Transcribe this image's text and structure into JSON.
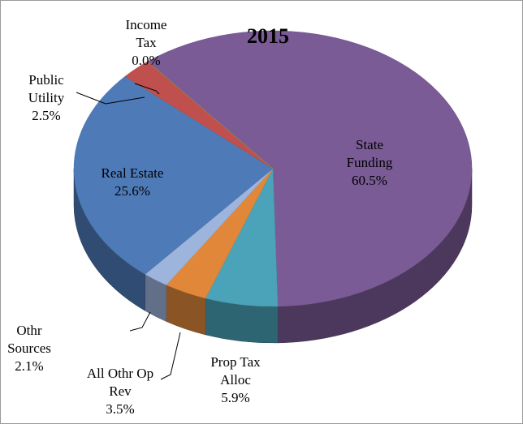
{
  "chart_data": {
    "type": "pie",
    "title": "2015",
    "categories": [
      "State Funding",
      "Prop Tax Alloc",
      "All Othr Op Rev",
      "Othr Sources",
      "Real Estate",
      "Public Utility",
      "Income Tax"
    ],
    "values": [
      60.5,
      5.9,
      3.5,
      2.1,
      25.6,
      2.5,
      0.0
    ],
    "value_labels": [
      "60.5%",
      "5.9%",
      "3.5%",
      "2.1%",
      "25.6%",
      "2.5%",
      "0.0%"
    ],
    "colors": [
      "#7a5b96",
      "#4aa3b8",
      "#e0873a",
      "#9db4dc",
      "#4e7bb8",
      "#c0504d",
      "#8fae52"
    ]
  }
}
